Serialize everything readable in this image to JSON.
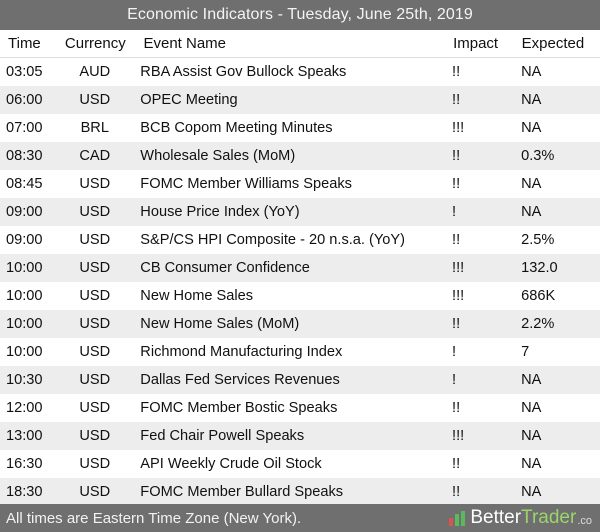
{
  "title": "Economic Indicators - Tuesday, June 25th, 2019",
  "columns": {
    "time": "Time",
    "currency": "Currency",
    "event": "Event Name",
    "impact": "Impact",
    "expected": "Expected"
  },
  "rows": [
    {
      "time": "03:05",
      "currency": "AUD",
      "event": "RBA Assist Gov Bullock Speaks",
      "impact": "!!",
      "expected": "NA"
    },
    {
      "time": "06:00",
      "currency": "USD",
      "event": "OPEC Meeting",
      "impact": "!!",
      "expected": "NA"
    },
    {
      "time": "07:00",
      "currency": "BRL",
      "event": "BCB Copom Meeting Minutes",
      "impact": "!!!",
      "expected": "NA"
    },
    {
      "time": "08:30",
      "currency": "CAD",
      "event": "Wholesale Sales (MoM)",
      "impact": "!!",
      "expected": "0.3%"
    },
    {
      "time": "08:45",
      "currency": "USD",
      "event": "FOMC Member Williams Speaks",
      "impact": "!!",
      "expected": "NA"
    },
    {
      "time": "09:00",
      "currency": "USD",
      "event": "House Price Index (YoY)",
      "impact": "!",
      "expected": "NA"
    },
    {
      "time": "09:00",
      "currency": "USD",
      "event": "S&P/CS HPI Composite - 20 n.s.a. (YoY)",
      "impact": "!!",
      "expected": "2.5%"
    },
    {
      "time": "10:00",
      "currency": "USD",
      "event": "CB Consumer Confidence",
      "impact": "!!!",
      "expected": "132.0"
    },
    {
      "time": "10:00",
      "currency": "USD",
      "event": "New Home Sales",
      "impact": "!!!",
      "expected": "686K"
    },
    {
      "time": "10:00",
      "currency": "USD",
      "event": "New Home Sales (MoM)",
      "impact": "!!",
      "expected": "2.2%"
    },
    {
      "time": "10:00",
      "currency": "USD",
      "event": "Richmond Manufacturing Index",
      "impact": "!",
      "expected": "7"
    },
    {
      "time": "10:30",
      "currency": "USD",
      "event": "Dallas Fed Services Revenues",
      "impact": "!",
      "expected": "NA"
    },
    {
      "time": "12:00",
      "currency": "USD",
      "event": "FOMC Member Bostic Speaks",
      "impact": "!!",
      "expected": "NA"
    },
    {
      "time": "13:00",
      "currency": "USD",
      "event": "Fed Chair Powell Speaks",
      "impact": "!!!",
      "expected": "NA"
    },
    {
      "time": "16:30",
      "currency": "USD",
      "event": "API Weekly Crude Oil Stock",
      "impact": "!!",
      "expected": "NA"
    },
    {
      "time": "18:30",
      "currency": "USD",
      "event": "FOMC Member Bullard Speaks",
      "impact": "!!",
      "expected": "NA"
    }
  ],
  "footer": {
    "note": "All times are Eastern Time Zone (New York).",
    "brand_part1": "Better",
    "brand_part2": "Trader",
    "brand_suffix": ".co",
    "logo_icon": "bar-chart-icon"
  },
  "colors": {
    "bar_bg": "#6f6f6f",
    "stripe": "#ededed",
    "brand_green": "#9bd46a"
  }
}
